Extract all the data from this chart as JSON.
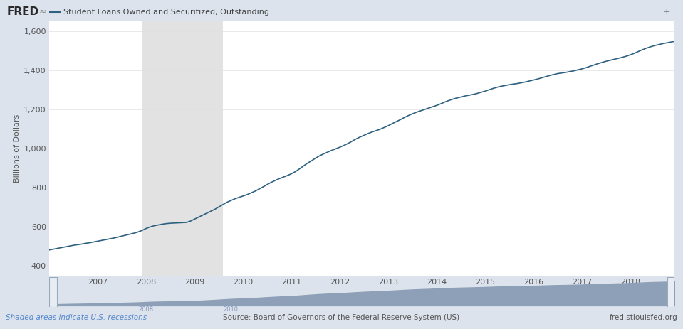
{
  "title": "Student Loans Owned and Securitized, Outstanding",
  "ylabel": "Billions of Dollars",
  "line_color": "#2e6080",
  "bg_color": "#dce3ed",
  "plot_bg_color": "#ffffff",
  "recession_color": "#e2e2e2",
  "recession_start": 2007.917,
  "recession_end": 2009.583,
  "ylim": [
    350,
    1650
  ],
  "yticks": [
    400,
    600,
    800,
    1000,
    1200,
    1400,
    1600
  ],
  "source_text": "Source: Board of Governors of the Federal Reserve System (US)",
  "shade_note": "Shaded areas indicate U.S. recessions",
  "fred_url": "fred.stlouisfed.org",
  "header_bg": "#dce3ed",
  "footer_bg": "#dce3ed",
  "minimap_bg": "#c8d0dc",
  "minimap_fill": "#8da0b8",
  "minimap_line": "#6080a0",
  "data": {
    "dates": [
      2006.0,
      2006.083,
      2006.167,
      2006.25,
      2006.333,
      2006.417,
      2006.5,
      2006.583,
      2006.667,
      2006.75,
      2006.833,
      2006.917,
      2007.0,
      2007.083,
      2007.167,
      2007.25,
      2007.333,
      2007.417,
      2007.5,
      2007.583,
      2007.667,
      2007.75,
      2007.833,
      2007.917,
      2008.0,
      2008.083,
      2008.167,
      2008.25,
      2008.333,
      2008.417,
      2008.5,
      2008.583,
      2008.667,
      2008.75,
      2008.833,
      2008.917,
      2009.0,
      2009.083,
      2009.167,
      2009.25,
      2009.333,
      2009.417,
      2009.5,
      2009.583,
      2009.667,
      2009.75,
      2009.833,
      2009.917,
      2010.0,
      2010.083,
      2010.167,
      2010.25,
      2010.333,
      2010.417,
      2010.5,
      2010.583,
      2010.667,
      2010.75,
      2010.833,
      2010.917,
      2011.0,
      2011.083,
      2011.167,
      2011.25,
      2011.333,
      2011.417,
      2011.5,
      2011.583,
      2011.667,
      2011.75,
      2011.833,
      2011.917,
      2012.0,
      2012.083,
      2012.167,
      2012.25,
      2012.333,
      2012.417,
      2012.5,
      2012.583,
      2012.667,
      2012.75,
      2012.833,
      2012.917,
      2013.0,
      2013.083,
      2013.167,
      2013.25,
      2013.333,
      2013.417,
      2013.5,
      2013.583,
      2013.667,
      2013.75,
      2013.833,
      2013.917,
      2014.0,
      2014.083,
      2014.167,
      2014.25,
      2014.333,
      2014.417,
      2014.5,
      2014.583,
      2014.667,
      2014.75,
      2014.833,
      2014.917,
      2015.0,
      2015.083,
      2015.167,
      2015.25,
      2015.333,
      2015.417,
      2015.5,
      2015.583,
      2015.667,
      2015.75,
      2015.833,
      2015.917,
      2016.0,
      2016.083,
      2016.167,
      2016.25,
      2016.333,
      2016.417,
      2016.5,
      2016.583,
      2016.667,
      2016.75,
      2016.833,
      2016.917,
      2017.0,
      2017.083,
      2017.167,
      2017.25,
      2017.333,
      2017.417,
      2017.5,
      2017.583,
      2017.667,
      2017.75,
      2017.833,
      2017.917,
      2018.0,
      2018.083,
      2018.167,
      2018.25,
      2018.333,
      2018.417,
      2018.5,
      2018.583,
      2018.667,
      2018.75,
      2018.833,
      2018.917
    ],
    "values": [
      480,
      484,
      488,
      492,
      496,
      500,
      504,
      507,
      510,
      514,
      517,
      521,
      525,
      529,
      533,
      537,
      541,
      546,
      551,
      556,
      561,
      566,
      572,
      580,
      590,
      598,
      604,
      608,
      612,
      615,
      617,
      618,
      619,
      620,
      621,
      628,
      638,
      648,
      658,
      668,
      678,
      688,
      700,
      712,
      724,
      733,
      742,
      749,
      756,
      763,
      772,
      781,
      792,
      803,
      815,
      826,
      836,
      845,
      853,
      861,
      870,
      881,
      895,
      910,
      924,
      937,
      950,
      962,
      972,
      981,
      990,
      998,
      1006,
      1015,
      1025,
      1036,
      1048,
      1058,
      1067,
      1076,
      1084,
      1091,
      1098,
      1107,
      1116,
      1127,
      1137,
      1147,
      1158,
      1168,
      1177,
      1185,
      1192,
      1199,
      1206,
      1213,
      1220,
      1228,
      1237,
      1245,
      1252,
      1258,
      1263,
      1268,
      1272,
      1276,
      1281,
      1287,
      1293,
      1300,
      1307,
      1313,
      1318,
      1322,
      1326,
      1329,
      1332,
      1336,
      1340,
      1345,
      1350,
      1355,
      1361,
      1367,
      1373,
      1378,
      1383,
      1386,
      1389,
      1393,
      1397,
      1402,
      1407,
      1413,
      1420,
      1427,
      1434,
      1440,
      1446,
      1451,
      1456,
      1461,
      1466,
      1472,
      1479,
      1487,
      1496,
      1505,
      1513,
      1520,
      1526,
      1531,
      1536,
      1540,
      1544,
      1548
    ]
  },
  "xlim_start": 2006.0,
  "xlim_end": 2018.917,
  "xticks": [
    2007,
    2008,
    2009,
    2010,
    2011,
    2012,
    2013,
    2014,
    2015,
    2016,
    2017,
    2018
  ]
}
